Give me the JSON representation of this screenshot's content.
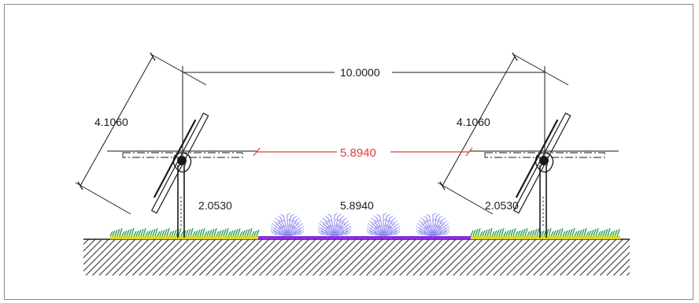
{
  "drawing": {
    "dimensions": {
      "spacing_top": "10.0000",
      "panel_length_left": "4.1060",
      "panel_length_right": "4.1060",
      "clearance_red": "5.8940",
      "post_height_left": "2.0530",
      "post_height_right": "2.0530",
      "crop_zone_width": "5.8940"
    },
    "colors": {
      "red_dimension": "#e23b3b",
      "grass_green": "#3aa63a",
      "grass_teal": "#2a9c7a",
      "grass_yellow": "#d8d82a",
      "crop_purple": "#8f8ff0",
      "crop_base": "#8a2be2",
      "ground_hatch": "#333333"
    },
    "icons": [
      "tracker-left-icon",
      "tracker-right-icon",
      "crop-plants-icon",
      "grass-strip-icon",
      "ground-hatch-icon"
    ]
  }
}
